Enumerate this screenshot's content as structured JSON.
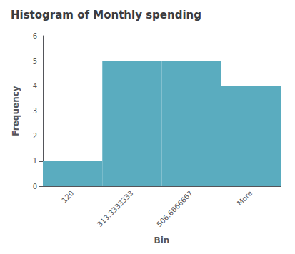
{
  "chart_data": {
    "type": "bar",
    "title": "Histogram of Monthly spending",
    "xlabel": "Bin",
    "ylabel": "Frequency",
    "categories": [
      "120",
      "313.3333333",
      "506.6666667",
      "More"
    ],
    "values": [
      1,
      5,
      5,
      4
    ],
    "color": "#5aacbf",
    "ylim": [
      0,
      6
    ],
    "yticks": [
      0,
      1,
      2,
      3,
      4,
      5,
      6
    ],
    "grid": false
  }
}
